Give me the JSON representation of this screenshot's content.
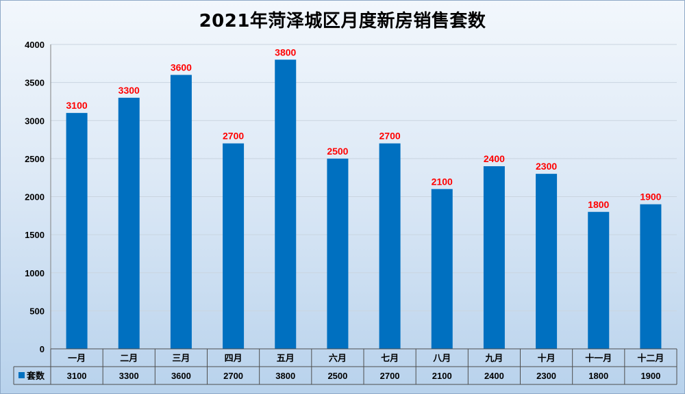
{
  "chart_data": {
    "type": "bar",
    "title": "2021年菏泽城区月度新房销售套数",
    "categories": [
      "一月",
      "二月",
      "三月",
      "四月",
      "五月",
      "六月",
      "七月",
      "八月",
      "九月",
      "十月",
      "十一月",
      "十二月"
    ],
    "series": [
      {
        "name": "套数",
        "values": [
          3100,
          3300,
          3600,
          2700,
          3800,
          2500,
          2700,
          2100,
          2400,
          2300,
          1800,
          1900
        ]
      }
    ],
    "ylim": [
      0,
      4000
    ],
    "yticks": [
      0,
      500,
      1000,
      1500,
      2000,
      2500,
      3000,
      3500,
      4000
    ],
    "bar_color": "#0070c0",
    "data_label_color": "#ff0000",
    "grid": true,
    "data_table": true
  }
}
